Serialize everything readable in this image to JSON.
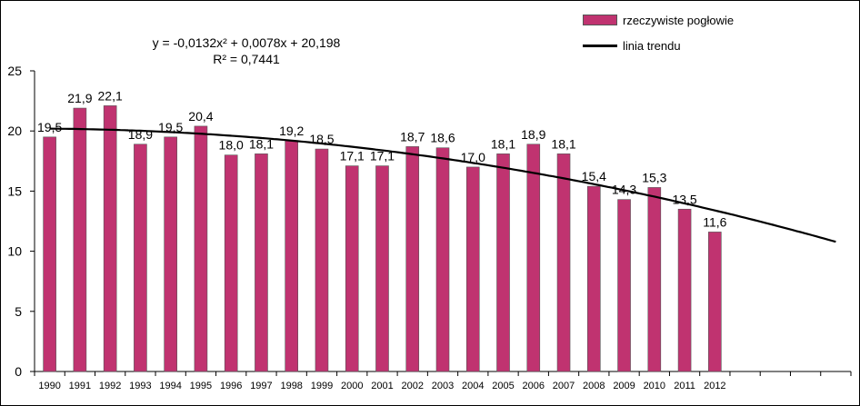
{
  "chart_data": {
    "type": "bar",
    "categories": [
      "1990",
      "1991",
      "1992",
      "1993",
      "1994",
      "1995",
      "1996",
      "1997",
      "1998",
      "1999",
      "2000",
      "2001",
      "2002",
      "2003",
      "2004",
      "2005",
      "2006",
      "2007",
      "2008",
      "2009",
      "2010",
      "2011",
      "2012"
    ],
    "series": [
      {
        "name": "rzeczywiste pogłowie",
        "values": [
          19.5,
          21.9,
          22.1,
          18.9,
          19.5,
          20.4,
          18.0,
          18.1,
          19.2,
          18.5,
          17.1,
          17.1,
          18.7,
          18.6,
          17.0,
          18.1,
          18.9,
          18.1,
          15.4,
          14.3,
          15.3,
          13.5,
          11.6
        ],
        "labels": [
          "19,5",
          "21,9",
          "22,1",
          "18,9",
          "19,5",
          "20,4",
          "18,0",
          "18,1",
          "19,2",
          "18,5",
          "17,1",
          "17,1",
          "18,7",
          "18,6",
          "17,0",
          "18,1",
          "18,9",
          "18,1",
          "15,4",
          "14,3",
          "15,3",
          "13,5",
          "11,6"
        ],
        "color": "#C03370"
      }
    ],
    "trendline": {
      "name": "linia trendu",
      "equation": "y = -0,0132x² + 0,0078x + 20,198",
      "r_squared": "R² = 0,7441",
      "coefficients": {
        "a": -0.0132,
        "b": 0.0078,
        "c": 20.198
      },
      "x_range": [
        1,
        27
      ],
      "color": "#000000"
    },
    "yticks": [
      "0",
      "5",
      "10",
      "15",
      "20",
      "25"
    ],
    "ylim": [
      0,
      25
    ],
    "slots": 27,
    "grid": false,
    "legend_position": "top-right"
  }
}
